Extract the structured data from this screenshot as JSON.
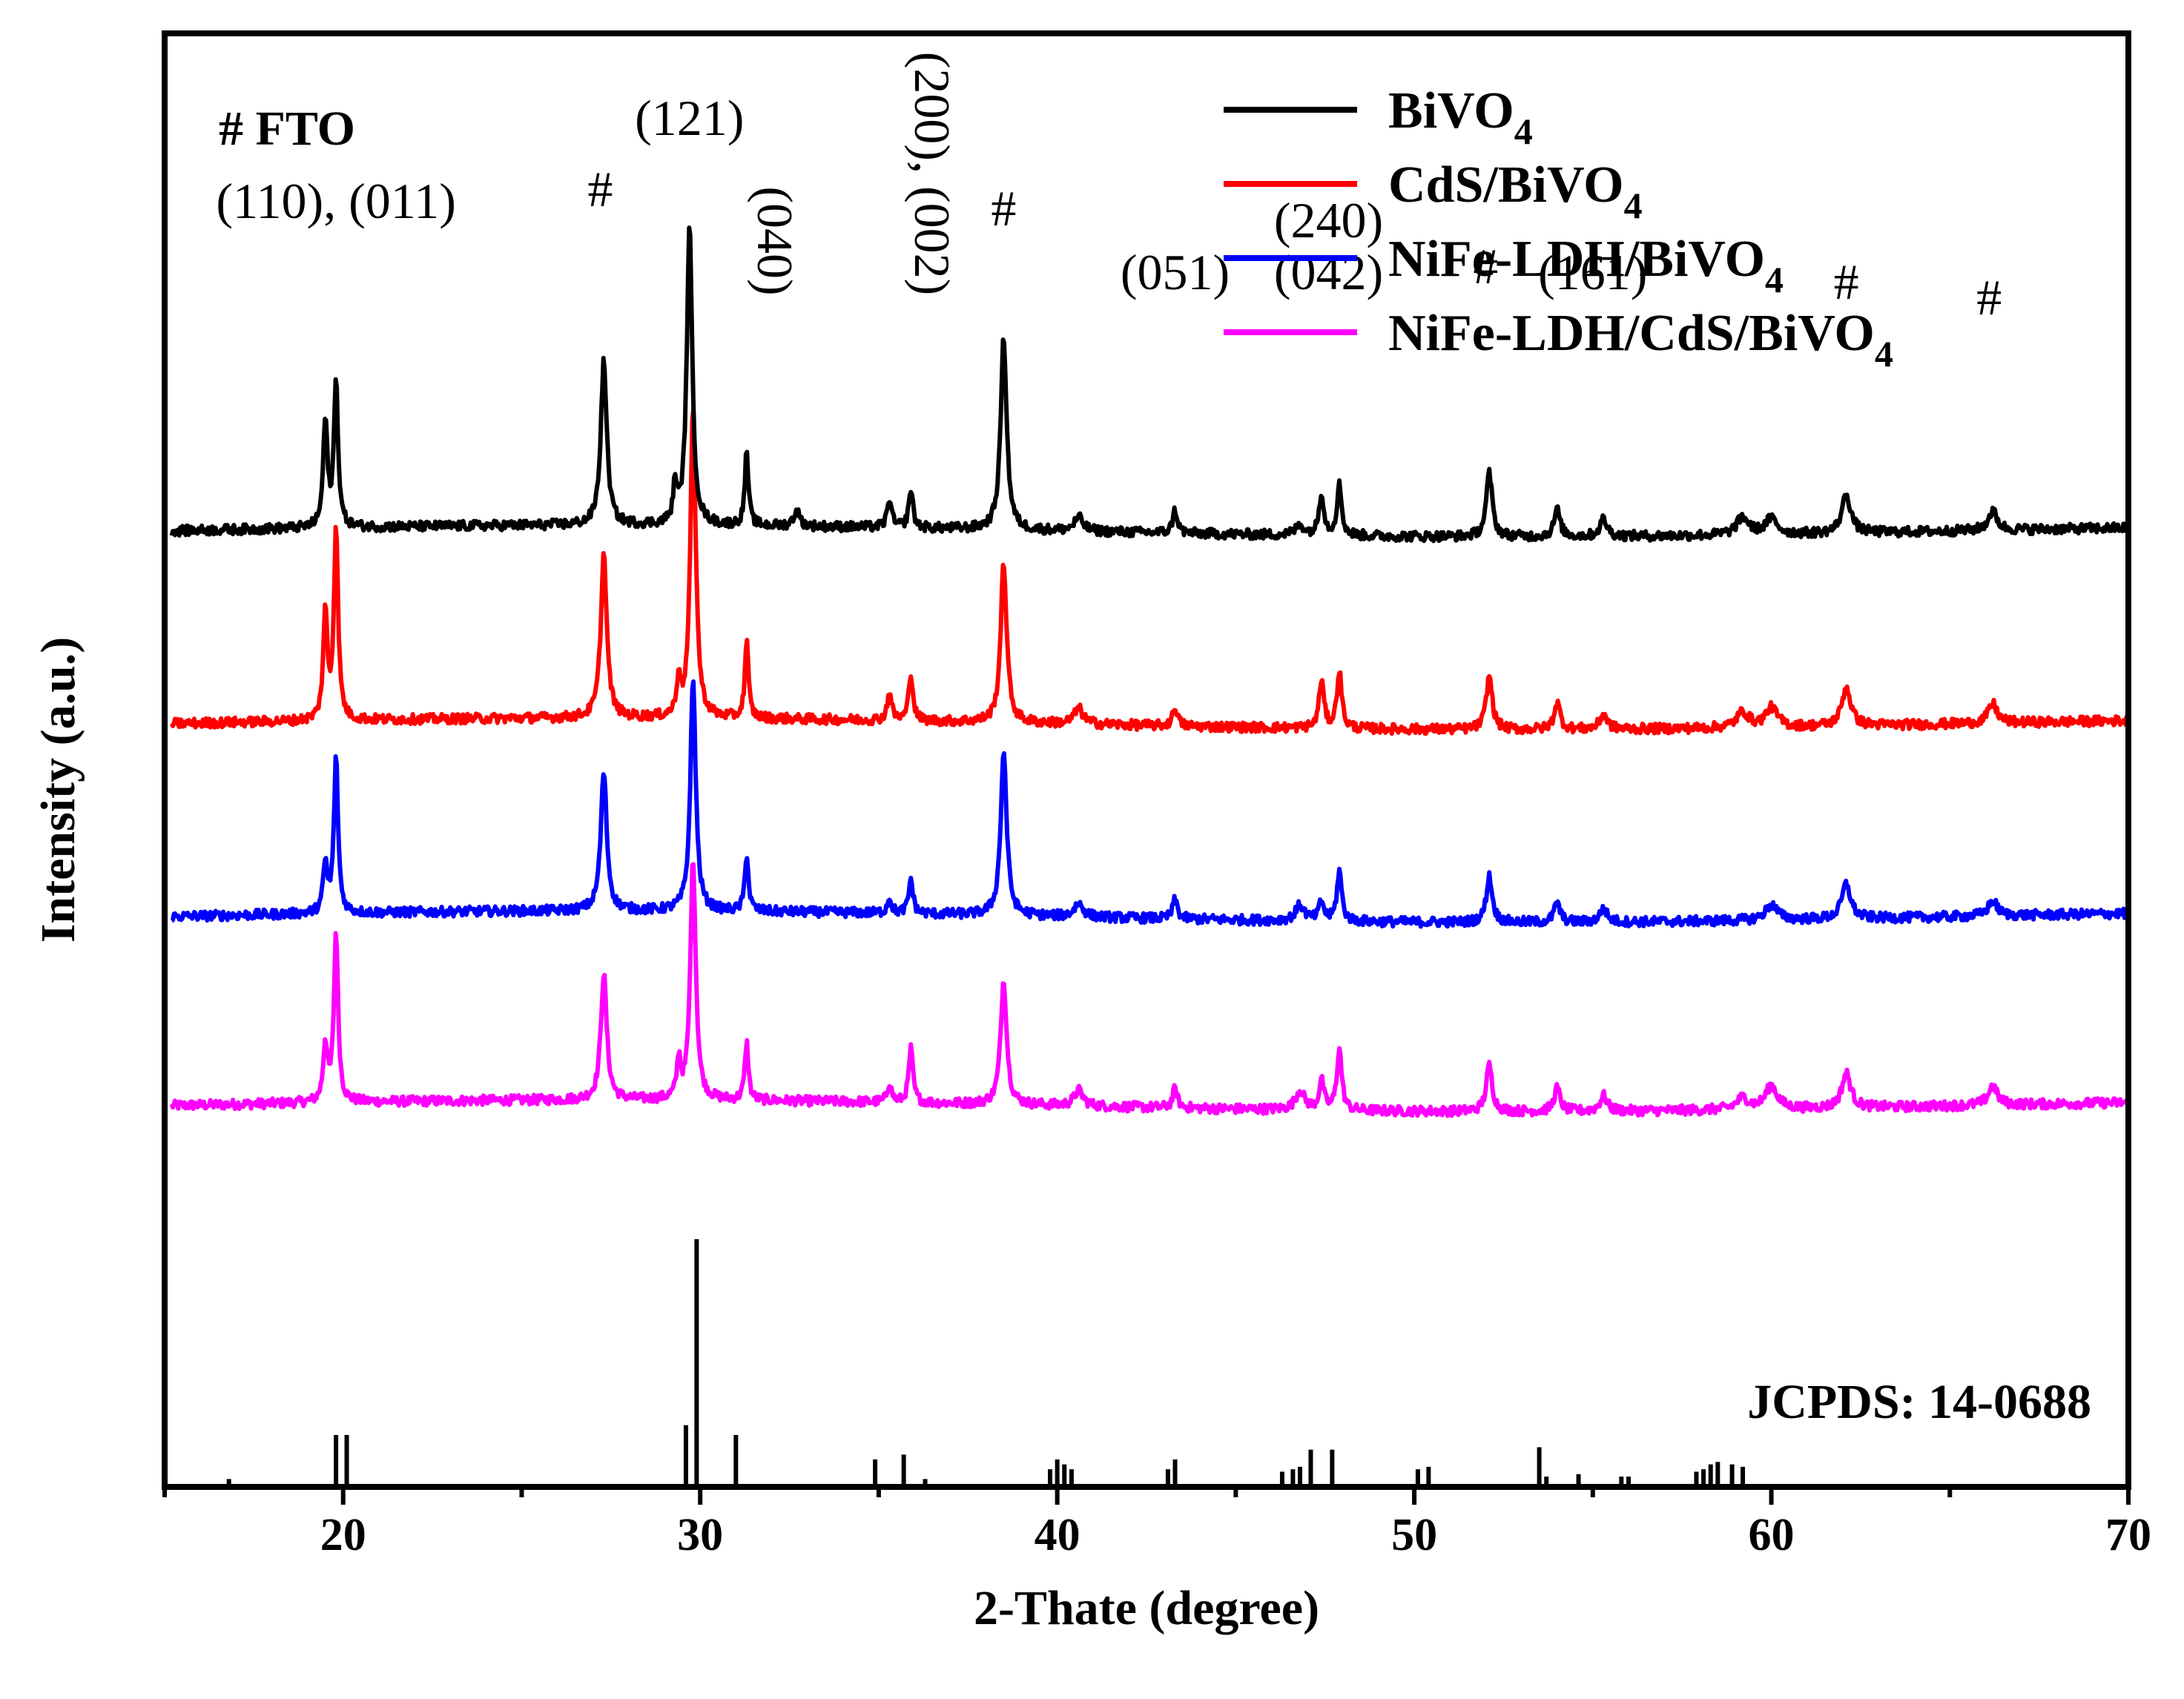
{
  "chart_data": {
    "type": "line",
    "title": "",
    "xlabel": "2-Thate (degree)",
    "ylabel": "Intensity (a.u.)",
    "xlim": [
      15,
      70
    ],
    "x_ticks": [
      20,
      30,
      40,
      50,
      60,
      70
    ],
    "grid": false,
    "legend_position": "top-right",
    "fto_marker_label": "# FTO",
    "reference_label": "JCPDS: 14-0688",
    "colors": {
      "BiVO4": "#000000",
      "CdS/BiVO4": "#ff0000",
      "NiFe-LDH/BiVO4": "#0000ff",
      "NiFe-LDH/CdS/BiVO4": "#ff00ff"
    },
    "series": [
      {
        "name": "BiVO4",
        "legend_main": "BiVO",
        "legend_sub": "4",
        "color": "#000000",
        "offset": 3
      },
      {
        "name": "CdS/BiVO4",
        "legend_main": "CdS/BiVO",
        "legend_sub": "4",
        "color": "#ff0000",
        "offset": 2
      },
      {
        "name": "NiFe-LDH/BiVO4",
        "legend_main": "NiFe-LDH/BiVO",
        "legend_sub": "4",
        "color": "#0000ff",
        "offset": 1
      },
      {
        "name": "NiFe-LDH/CdS/BiVO4",
        "legend_main": "NiFe-LDH/CdS/BiVO",
        "legend_sub": "4",
        "color": "#ff00ff",
        "offset": 0
      }
    ],
    "series_peaks": {
      "BiVO4": [
        [
          19.5,
          0.55,
          0.07
        ],
        [
          19.8,
          0.75,
          0.07
        ],
        [
          27.3,
          0.85,
          0.1
        ],
        [
          29.3,
          0.2,
          0.06
        ],
        [
          29.7,
          1.55,
          0.09
        ],
        [
          31.3,
          0.38,
          0.06
        ],
        [
          32.7,
          0.08,
          0.1
        ],
        [
          35.3,
          0.15,
          0.07
        ],
        [
          35.9,
          0.2,
          0.07
        ],
        [
          38.5,
          1.0,
          0.1
        ],
        [
          40.6,
          0.07,
          0.15
        ],
        [
          43.3,
          0.12,
          0.08
        ],
        [
          46.8,
          0.05,
          0.15
        ],
        [
          47.4,
          0.22,
          0.08
        ],
        [
          47.9,
          0.26,
          0.08
        ],
        [
          52.1,
          0.33,
          0.1
        ],
        [
          54.0,
          0.14,
          0.1
        ],
        [
          55.3,
          0.09,
          0.12
        ],
        [
          59.2,
          0.09,
          0.2
        ],
        [
          60.0,
          0.08,
          0.2
        ],
        [
          62.1,
          0.2,
          0.15
        ],
        [
          66.2,
          0.1,
          0.15
        ]
      ],
      "CdS/BiVO4": [
        [
          19.5,
          0.55,
          0.07
        ],
        [
          19.8,
          1.0,
          0.07
        ],
        [
          27.3,
          0.85,
          0.1
        ],
        [
          29.4,
          0.2,
          0.06
        ],
        [
          29.8,
          1.6,
          0.09
        ],
        [
          31.3,
          0.4,
          0.06
        ],
        [
          35.3,
          0.15,
          0.07
        ],
        [
          35.9,
          0.25,
          0.07
        ],
        [
          38.5,
          0.83,
          0.1
        ],
        [
          40.6,
          0.08,
          0.15
        ],
        [
          43.3,
          0.1,
          0.08
        ],
        [
          47.4,
          0.25,
          0.08
        ],
        [
          47.9,
          0.3,
          0.08
        ],
        [
          52.1,
          0.28,
          0.1
        ],
        [
          54.0,
          0.14,
          0.1
        ],
        [
          55.3,
          0.08,
          0.12
        ],
        [
          59.2,
          0.08,
          0.2
        ],
        [
          60.0,
          0.1,
          0.2
        ],
        [
          62.1,
          0.2,
          0.15
        ],
        [
          66.2,
          0.1,
          0.15
        ]
      ],
      "NiFe-LDH/BiVO4": [
        [
          19.5,
          0.25,
          0.07
        ],
        [
          19.8,
          0.8,
          0.07
        ],
        [
          27.3,
          0.72,
          0.1
        ],
        [
          29.8,
          1.2,
          0.09
        ],
        [
          31.3,
          0.3,
          0.06
        ],
        [
          35.3,
          0.08,
          0.07
        ],
        [
          35.9,
          0.18,
          0.07
        ],
        [
          38.5,
          0.85,
          0.1
        ],
        [
          40.6,
          0.07,
          0.15
        ],
        [
          43.3,
          0.1,
          0.08
        ],
        [
          46.8,
          0.08,
          0.15
        ],
        [
          47.4,
          0.1,
          0.08
        ],
        [
          47.9,
          0.26,
          0.08
        ],
        [
          52.1,
          0.24,
          0.1
        ],
        [
          54.0,
          0.1,
          0.1
        ],
        [
          55.3,
          0.07,
          0.12
        ],
        [
          60.0,
          0.08,
          0.2
        ],
        [
          62.1,
          0.18,
          0.15
        ],
        [
          66.2,
          0.08,
          0.15
        ]
      ],
      "NiFe-LDH/CdS/BiVO4": [
        [
          19.5,
          0.3,
          0.07
        ],
        [
          19.8,
          0.88,
          0.07
        ],
        [
          27.3,
          0.65,
          0.1
        ],
        [
          29.4,
          0.2,
          0.06
        ],
        [
          29.8,
          1.25,
          0.09
        ],
        [
          31.3,
          0.3,
          0.06
        ],
        [
          35.3,
          0.1,
          0.07
        ],
        [
          35.9,
          0.28,
          0.07
        ],
        [
          38.5,
          0.65,
          0.1
        ],
        [
          40.6,
          0.08,
          0.15
        ],
        [
          43.3,
          0.1,
          0.08
        ],
        [
          46.8,
          0.1,
          0.15
        ],
        [
          47.4,
          0.15,
          0.08
        ],
        [
          47.9,
          0.32,
          0.08
        ],
        [
          52.1,
          0.24,
          0.1
        ],
        [
          54.0,
          0.12,
          0.1
        ],
        [
          55.3,
          0.08,
          0.12
        ],
        [
          59.2,
          0.06,
          0.2
        ],
        [
          60.0,
          0.12,
          0.2
        ],
        [
          62.1,
          0.18,
          0.15
        ],
        [
          66.2,
          0.1,
          0.15
        ]
      ]
    },
    "annotations": [
      {
        "text": "(110), (011)",
        "x": 19.8,
        "y": 4.62,
        "rotate": false
      },
      {
        "text": "#",
        "x": 27.2,
        "y": 4.68,
        "rotate": false
      },
      {
        "text": "(121)",
        "x": 29.7,
        "y": 5.05,
        "rotate": false
      },
      {
        "text": "(040)",
        "x": 31.2,
        "y": 4.5,
        "rotate": true
      },
      {
        "text": "(200), (002)",
        "x": 35.6,
        "y": 4.85,
        "rotate": true
      },
      {
        "text": "#",
        "x": 38.5,
        "y": 4.58,
        "rotate": false
      },
      {
        "text": "(051)",
        "x": 43.3,
        "y": 4.25,
        "rotate": false
      },
      {
        "text": "(240)",
        "x": 47.6,
        "y": 4.52,
        "rotate": false
      },
      {
        "text": "(042)",
        "x": 47.6,
        "y": 4.25,
        "rotate": false
      },
      {
        "text": "#",
        "x": 52.0,
        "y": 4.28,
        "rotate": false
      },
      {
        "text": "(161)",
        "x": 55.0,
        "y": 4.25,
        "rotate": false
      },
      {
        "text": "#",
        "x": 62.1,
        "y": 4.2,
        "rotate": false
      },
      {
        "text": "#",
        "x": 66.1,
        "y": 4.12,
        "rotate": false
      }
    ],
    "reference_pattern": {
      "source": "JCPDS: 14-0688",
      "positions": [
        16.0,
        19.0,
        19.3,
        28.8,
        29.1,
        30.2,
        34.1,
        34.9,
        35.5,
        39.0,
        39.2,
        39.4,
        39.6,
        42.3,
        42.5,
        45.5,
        45.8,
        46.0,
        46.3,
        46.9,
        49.3,
        49.6,
        52.7,
        52.9,
        53.8,
        55.0,
        55.2,
        57.1,
        57.3,
        57.5,
        57.7,
        58.1,
        58.4
      ],
      "intensities": [
        0.02,
        0.2,
        0.2,
        0.24,
        1.0,
        0.2,
        0.1,
        0.12,
        0.02,
        0.06,
        0.1,
        0.08,
        0.06,
        0.06,
        0.1,
        0.05,
        0.06,
        0.07,
        0.14,
        0.14,
        0.06,
        0.07,
        0.15,
        0.03,
        0.04,
        0.03,
        0.03,
        0.05,
        0.06,
        0.08,
        0.09,
        0.08,
        0.07
      ]
    }
  }
}
